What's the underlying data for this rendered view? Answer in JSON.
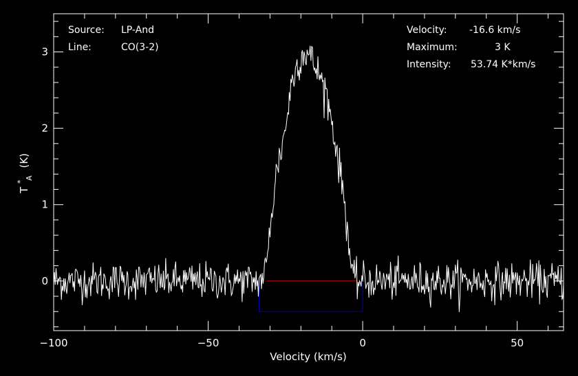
{
  "chart_data": {
    "type": "line",
    "xlabel": "Velocity (km/s)",
    "ylabel_base": "T",
    "ylabel_sup": "*",
    "ylabel_sub": "A",
    "ylabel_unit": "(K)",
    "xlim": [
      -100,
      65
    ],
    "ylim": [
      -0.65,
      3.5
    ],
    "xticks": [
      -100,
      -50,
      0,
      50
    ],
    "yticks": [
      0,
      1,
      2,
      3
    ],
    "grid": false,
    "background": "#000000",
    "spectrum_color": "#ffffff",
    "baseline": {
      "y": 0,
      "x_range": [
        -31,
        -2
      ],
      "color": "#cc0000"
    },
    "integration_window": {
      "x_range": [
        -33.5,
        0
      ],
      "y": -0.4,
      "color": "#0000cc"
    },
    "spectrum": {
      "channel_width_kms": 0.25,
      "noise_rms_K": 0.12,
      "line_profile_points": [
        [
          -33,
          0
        ],
        [
          -31,
          0.2
        ],
        [
          -30,
          0.7
        ],
        [
          -28,
          1.4
        ],
        [
          -26,
          1.8
        ],
        [
          -25,
          2.0
        ],
        [
          -23,
          2.6
        ],
        [
          -21,
          2.85
        ],
        [
          -19,
          3.0
        ],
        [
          -17,
          2.95
        ],
        [
          -16,
          2.85
        ],
        [
          -14,
          2.7
        ],
        [
          -12,
          2.5
        ],
        [
          -10,
          2.1
        ],
        [
          -8,
          1.6
        ],
        [
          -6,
          1.1
        ],
        [
          -5,
          0.7
        ],
        [
          -4,
          0.3
        ],
        [
          -3,
          0.0
        ]
      ]
    }
  },
  "annotations": {
    "source_label": "Source:",
    "source_value": "LP-And",
    "line_label": "Line:",
    "line_value": "CO(3-2)",
    "velocity_label": "Velocity:",
    "velocity_value": "-16.6 km/s",
    "maximum_label": "Maximum:",
    "maximum_value": "3 K",
    "intensity_label": "Intensity:",
    "intensity_value": "53.74 K*km/s"
  }
}
